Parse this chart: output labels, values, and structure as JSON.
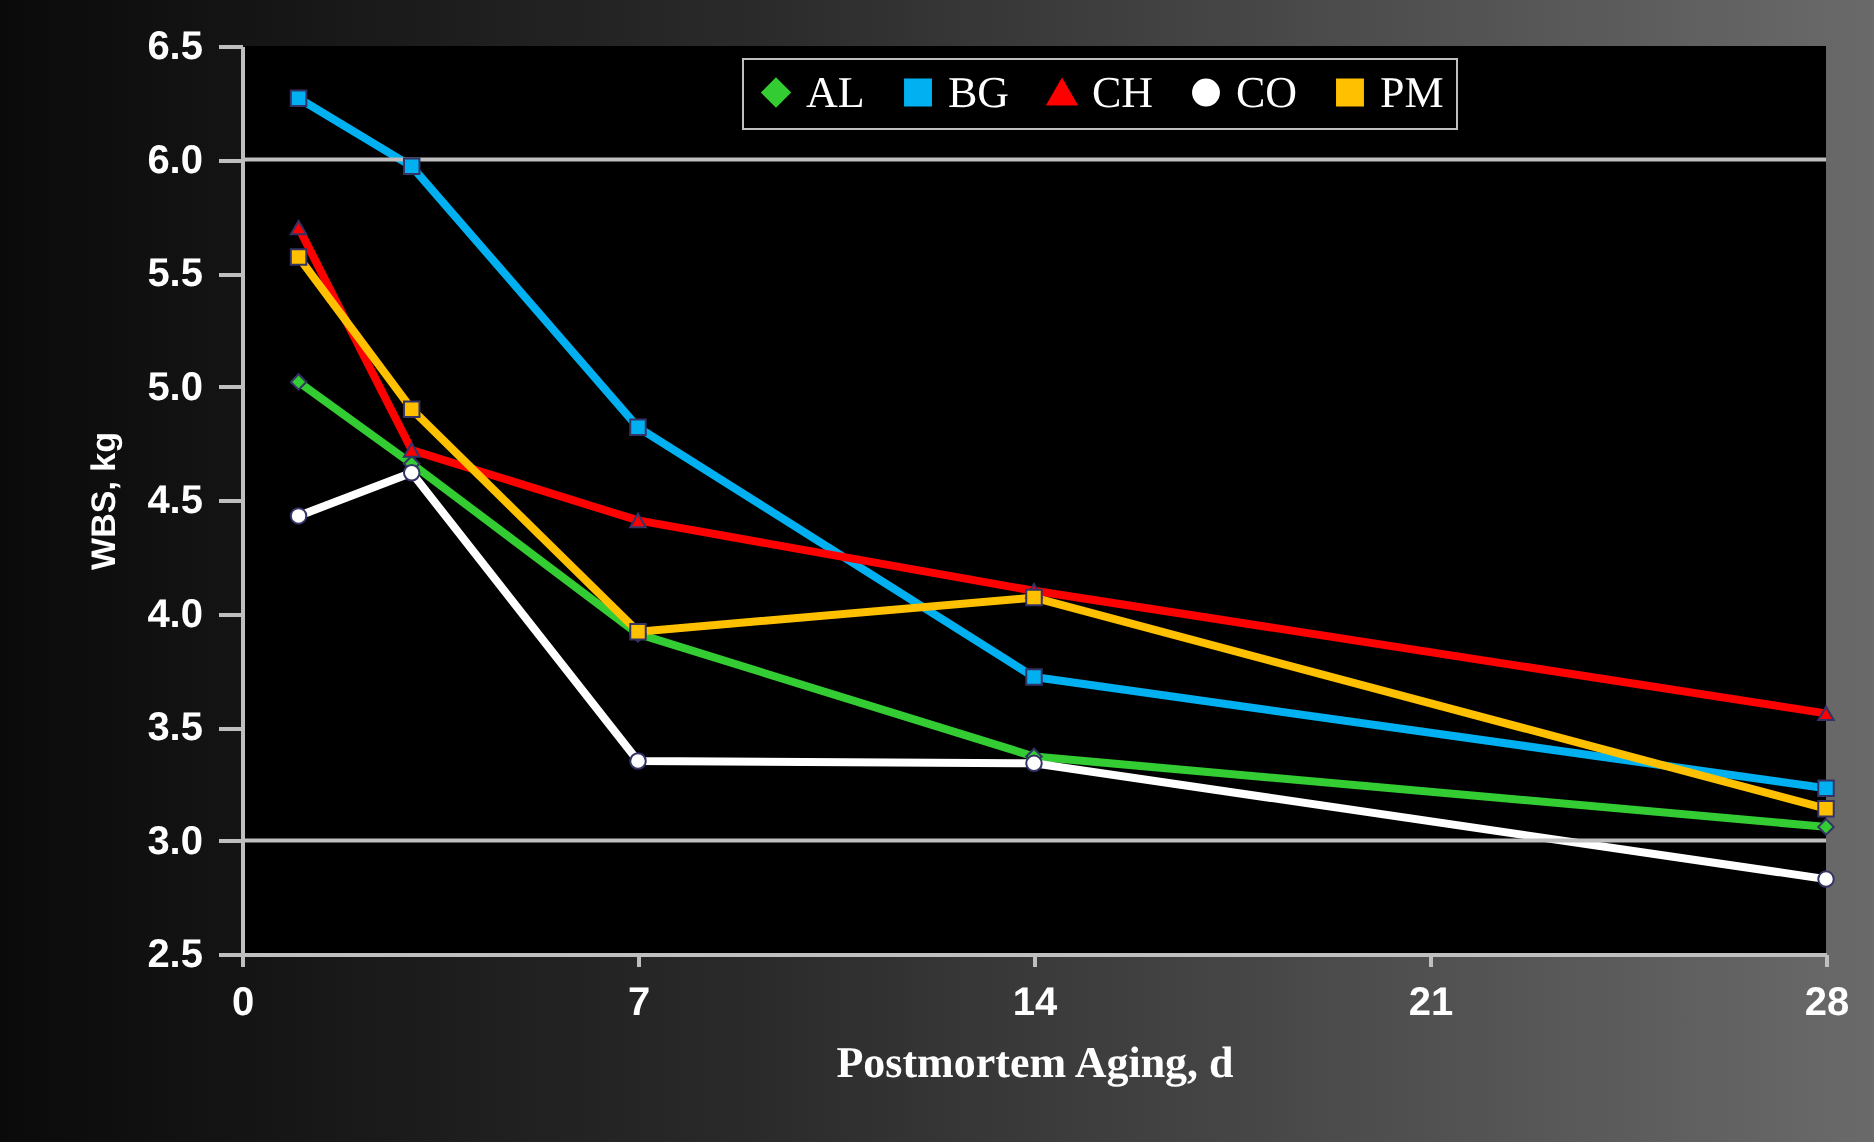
{
  "chart_data": {
    "type": "line",
    "xlabel": "Postmortem Aging, d",
    "ylabel": "WBS, kg",
    "x": [
      1,
      3,
      7,
      14,
      28
    ],
    "xlim": [
      0,
      28
    ],
    "xticks": [
      0,
      7,
      14,
      21,
      28
    ],
    "ylim": [
      2.5,
      6.5
    ],
    "yticks": [
      2.5,
      {
        "value": 3,
        "label": "3.0"
      },
      3.5,
      {
        "value": 4,
        "label": "4.0"
      },
      4.5,
      {
        "value": 5,
        "label": "5.0"
      },
      5.5,
      {
        "value": 6,
        "label": "6.0"
      },
      6.5
    ],
    "legend": "top",
    "line_style": "solid",
    "ref_lines": [
      {
        "axis": "y",
        "value": 3,
        "color": "#bfbfbf"
      },
      {
        "axis": "y",
        "value": 6,
        "color": "#bfbfbf"
      }
    ],
    "series": [
      {
        "name": "AL",
        "color": "#33cc33",
        "marker": "diamond",
        "values": [
          5.02,
          4.66,
          3.91,
          3.37,
          3.06
        ]
      },
      {
        "name": "BG",
        "color": "#00b0f0",
        "marker": "square",
        "values": [
          6.27,
          5.97,
          4.82,
          3.72,
          3.23
        ]
      },
      {
        "name": "CH",
        "color": "#ff0000",
        "marker": "triangle",
        "values": [
          5.7,
          4.72,
          4.41,
          4.1,
          3.56
        ]
      },
      {
        "name": "CO",
        "color": "#ffffff",
        "marker": "circle",
        "values": [
          4.43,
          4.62,
          3.35,
          3.34,
          2.83
        ]
      },
      {
        "name": "PM",
        "color": "#ffc000",
        "marker": "square",
        "values": [
          5.57,
          4.9,
          3.92,
          4.07,
          3.14
        ]
      }
    ]
  }
}
